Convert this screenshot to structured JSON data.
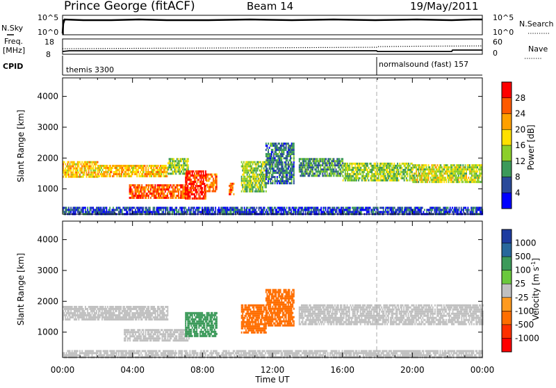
{
  "header": {
    "station": "Prince George (fitACF)",
    "beam": "Beam 14",
    "date": "19/May/2011"
  },
  "status_panel": {
    "left_label": "N.Sky",
    "left_ticks": [
      "10^5",
      "10^0"
    ],
    "right_label": "N.Search",
    "right_ticks": [
      "10^5",
      "10^0"
    ]
  },
  "freq_panel": {
    "left_label": "Freq.",
    "left_units": "[MHz]",
    "left_ticks": [
      "18",
      "8"
    ],
    "right_label": "Nave",
    "right_ticks": [
      "60",
      "0"
    ]
  },
  "cpid": {
    "label": "CPID",
    "segments": [
      {
        "start_hour": 0,
        "text": "themis 3300"
      },
      {
        "start_hour": 18,
        "text": "normalsound (fast) 157"
      }
    ]
  },
  "x_axis": {
    "label": "Time UT",
    "tick_labels": [
      "00:00",
      "04:00",
      "08:00",
      "12:00",
      "16:00",
      "20:00",
      "00:00"
    ]
  },
  "power_colorbar": {
    "label": "Power [dB]",
    "tick_labels": [
      "28",
      "24",
      "20",
      "16",
      "12",
      "8",
      "4"
    ],
    "colors": [
      "#ff0000",
      "#ff5a00",
      "#ffa000",
      "#ffe000",
      "#8ccf2a",
      "#3c9a5a",
      "#2a4a9a",
      "#0000ff"
    ]
  },
  "velocity_colorbar": {
    "label": "Velocity [m s",
    "label_exponent": "-1",
    "label_end": "]",
    "tick_labels": [
      "1000",
      "500",
      "100",
      "25",
      "-25",
      "-100",
      "-500",
      "-1000"
    ],
    "colors": [
      "#1e3ca0",
      "#28689c",
      "#3c9a5a",
      "#6ac83c",
      "#c0c0c0",
      "#ff9a1e",
      "#ff6e00",
      "#ff3000",
      "#ff0000"
    ]
  },
  "chart_data": [
    {
      "type": "heatmap",
      "title": "",
      "xlabel": "Time UT",
      "ylabel": "Slant Range [km]",
      "xlim_hours": [
        0,
        24
      ],
      "ylim": [
        180,
        4600
      ],
      "yticks": [
        1000,
        2000,
        3000,
        4000
      ],
      "colorbar": "Power [dB]",
      "bands": [
        {
          "t0": 0.0,
          "t1": 2.0,
          "r0": 1380,
          "r1": 1900,
          "value": 20
        },
        {
          "t0": 2.0,
          "t1": 6.0,
          "r0": 1400,
          "r1": 1780,
          "value": 20
        },
        {
          "t0": 6.0,
          "t1": 7.2,
          "r0": 1500,
          "r1": 2000,
          "value": 14
        },
        {
          "t0": 3.8,
          "t1": 7.0,
          "r0": 700,
          "r1": 1150,
          "value": 26
        },
        {
          "t0": 7.0,
          "t1": 8.2,
          "r0": 700,
          "r1": 1600,
          "value": 28
        },
        {
          "t0": 8.2,
          "t1": 8.8,
          "r0": 900,
          "r1": 1500,
          "value": 24
        },
        {
          "t0": 9.5,
          "t1": 9.8,
          "r0": 800,
          "r1": 1200,
          "value": 26
        },
        {
          "t0": 10.2,
          "t1": 11.6,
          "r0": 900,
          "r1": 1900,
          "value": 14
        },
        {
          "t0": 11.6,
          "t1": 13.2,
          "r0": 1200,
          "r1": 2500,
          "value": 8
        },
        {
          "t0": 13.5,
          "t1": 16.0,
          "r0": 1400,
          "r1": 2000,
          "value": 10
        },
        {
          "t0": 16.0,
          "t1": 20.0,
          "r0": 1250,
          "r1": 1850,
          "value": 14
        },
        {
          "t0": 20.0,
          "t1": 24.0,
          "r0": 1250,
          "r1": 1800,
          "value": 16
        },
        {
          "t0": 0.0,
          "t1": 24.0,
          "r0": 200,
          "r1": 420,
          "value": 5
        }
      ]
    },
    {
      "type": "heatmap",
      "title": "",
      "xlabel": "Time UT",
      "ylabel": "Slant Range [km]",
      "xlim_hours": [
        0,
        24
      ],
      "ylim": [
        180,
        4600
      ],
      "yticks": [
        1000,
        2000,
        3000,
        4000
      ],
      "colorbar": "Velocity [m s-1]",
      "bands": [
        {
          "t0": 0.0,
          "t1": 6.0,
          "r0": 1400,
          "r1": 1850,
          "value": 0
        },
        {
          "t0": 3.5,
          "t1": 7.2,
          "r0": 700,
          "r1": 1100,
          "value": 0
        },
        {
          "t0": 7.0,
          "t1": 8.8,
          "r0": 900,
          "r1": 1650,
          "value": 120
        },
        {
          "t0": 10.2,
          "t1": 11.6,
          "r0": 1000,
          "r1": 1900,
          "value": -150
        },
        {
          "t0": 11.6,
          "t1": 13.2,
          "r0": 1200,
          "r1": 2400,
          "value": -300
        },
        {
          "t0": 13.5,
          "t1": 24.0,
          "r0": 1250,
          "r1": 1900,
          "value": 0
        },
        {
          "t0": 0.0,
          "t1": 24.0,
          "r0": 200,
          "r1": 420,
          "value": 0
        }
      ]
    }
  ]
}
